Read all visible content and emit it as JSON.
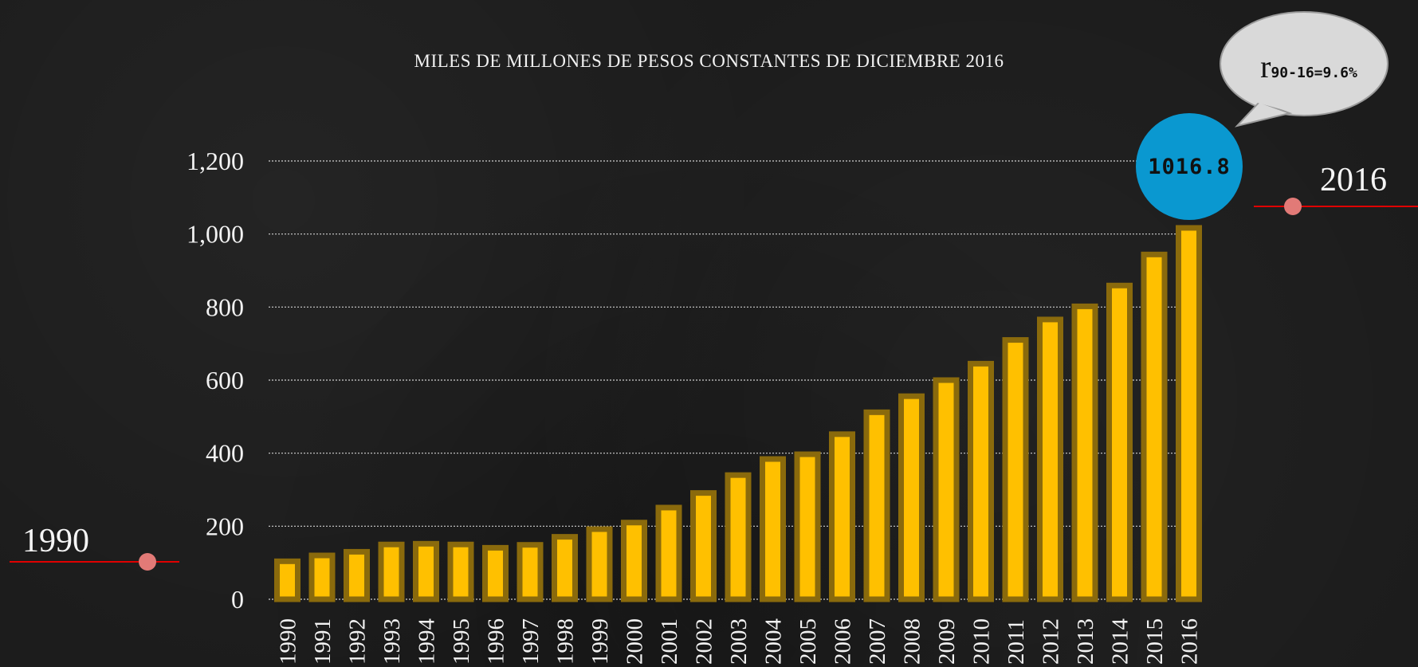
{
  "chart_data": {
    "type": "bar",
    "title": "MILES DE MILLONES DE PESOS CONSTANTES DE DICIEMBRE 2016",
    "xlabel": "",
    "ylabel": "",
    "ylim": [
      0,
      1200
    ],
    "yticks": [
      "0",
      "200",
      "400",
      "600",
      "800",
      "1,000",
      "1,200"
    ],
    "grid": true,
    "categories": [
      "1990",
      "1991",
      "1992",
      "1993",
      "1994",
      "1995",
      "1996",
      "1997",
      "1998",
      "1999",
      "2000",
      "2001",
      "2002",
      "2003",
      "2004",
      "2005",
      "2006",
      "2007",
      "2008",
      "2009",
      "2010",
      "2011",
      "2012",
      "2013",
      "2014",
      "2015",
      "2016"
    ],
    "values": [
      104,
      120,
      130,
      150,
      152,
      150,
      141,
      149,
      171,
      192,
      210,
      251,
      291,
      340,
      384,
      397,
      452,
      512,
      556,
      600,
      645,
      710,
      766,
      802,
      859,
      944,
      1016.8
    ]
  },
  "colors": {
    "bar_fill": "#ffc000",
    "bar_border": "#8a6a0c",
    "peak_circle": "#0a98d0",
    "marker_line": "#e00000",
    "marker_dot": "#e27a77",
    "bubble": "#d9d9d9"
  },
  "annotations": {
    "start_label": "1990",
    "end_label": "2016",
    "peak_value": "1016.8",
    "growth_rate_symbol": "r",
    "growth_rate_text": "90-16=9.6%"
  }
}
